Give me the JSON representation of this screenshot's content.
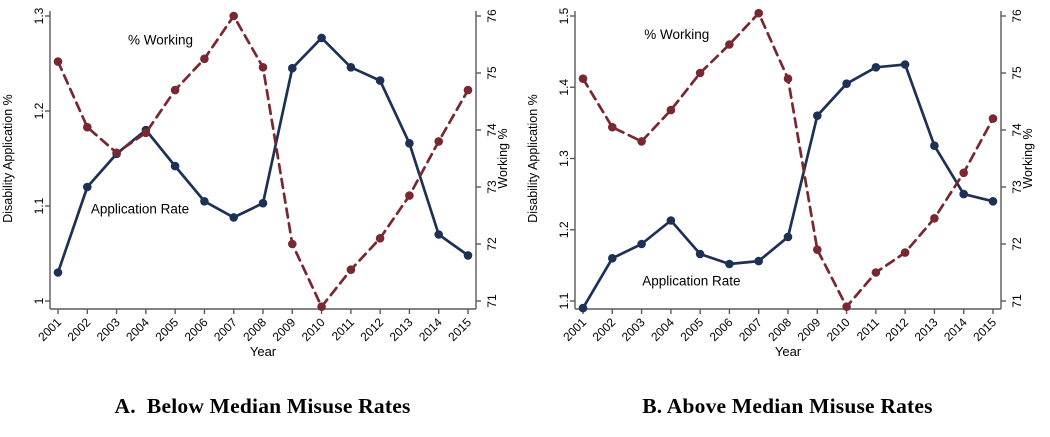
{
  "figure": {
    "captions": {
      "panel_a": "A.  Below Median Misuse Rates",
      "panel_b": "B. Above Median Misuse Rates"
    }
  },
  "colors": {
    "application_rate": "#1e3155",
    "pct_working": "#772831",
    "axis": "#5a5a5a",
    "text": "#000000"
  },
  "chart_data": [
    {
      "type": "line",
      "panel": "A",
      "title": "A. Below Median Misuse Rates",
      "x": [
        2001,
        2002,
        2003,
        2004,
        2005,
        2006,
        2007,
        2008,
        2009,
        2010,
        2011,
        2012,
        2013,
        2014,
        2015
      ],
      "xlabel": "Year",
      "grid": false,
      "legend": "inline-annotations",
      "left_axis": {
        "label": "Disability Application %",
        "ticks": [
          1,
          1.1,
          1.2,
          1.3
        ],
        "lim": [
          1,
          1.3
        ]
      },
      "right_axis": {
        "label": "Working %",
        "ticks": [
          71,
          72,
          73,
          74,
          75,
          76
        ],
        "lim": [
          71,
          76
        ]
      },
      "series": [
        {
          "name": "Application Rate",
          "axis": "left",
          "line": "solid",
          "color_key": "application_rate",
          "values": [
            1.03,
            1.12,
            1.155,
            1.18,
            1.142,
            1.105,
            1.088,
            1.103,
            1.245,
            1.277,
            1.246,
            1.232,
            1.166,
            1.07,
            1.048
          ]
        },
        {
          "name": "% Working",
          "axis": "right",
          "line": "dashed",
          "color_key": "pct_working",
          "values": [
            75.2,
            74.05,
            73.6,
            73.95,
            74.7,
            75.25,
            76.0,
            75.1,
            72.0,
            70.9,
            71.55,
            72.1,
            72.85,
            73.8,
            74.7
          ]
        }
      ],
      "annotations": [
        {
          "text": "% Working",
          "year": 2004.5,
          "value": 75.5,
          "axis": "right"
        },
        {
          "text": "Application Rate",
          "year": 2003.8,
          "value": 1.092,
          "axis": "left"
        }
      ]
    },
    {
      "type": "line",
      "panel": "B",
      "title": "B. Above Median Misuse Rates",
      "x": [
        2001,
        2002,
        2003,
        2004,
        2005,
        2006,
        2007,
        2008,
        2009,
        2010,
        2011,
        2012,
        2013,
        2014,
        2015
      ],
      "xlabel": "Year",
      "grid": false,
      "legend": "inline-annotations",
      "left_axis": {
        "label": "Disability Application %",
        "ticks": [
          1.1,
          1.2,
          1.3,
          1.4,
          1.5
        ],
        "lim": [
          1.1,
          1.5
        ]
      },
      "right_axis": {
        "label": "Working %",
        "ticks": [
          71,
          72,
          73,
          74,
          75,
          76
        ],
        "lim": [
          71,
          76
        ]
      },
      "series": [
        {
          "name": "Application Rate",
          "axis": "left",
          "line": "solid",
          "color_key": "application_rate",
          "values": [
            1.09,
            1.16,
            1.18,
            1.213,
            1.166,
            1.152,
            1.156,
            1.19,
            1.36,
            1.405,
            1.428,
            1.432,
            1.318,
            1.25,
            1.24
          ]
        },
        {
          "name": "% Working",
          "axis": "right",
          "line": "dashed",
          "color_key": "pct_working",
          "values": [
            74.9,
            74.05,
            73.8,
            74.35,
            75.0,
            75.5,
            76.05,
            74.9,
            71.9,
            70.9,
            71.5,
            71.85,
            72.45,
            73.25,
            74.2
          ]
        }
      ],
      "annotations": [
        {
          "text": "% Working",
          "year": 2004.2,
          "value": 75.6,
          "axis": "right"
        },
        {
          "text": "Application Rate",
          "year": 2004.7,
          "value": 1.122,
          "axis": "left"
        }
      ]
    }
  ]
}
